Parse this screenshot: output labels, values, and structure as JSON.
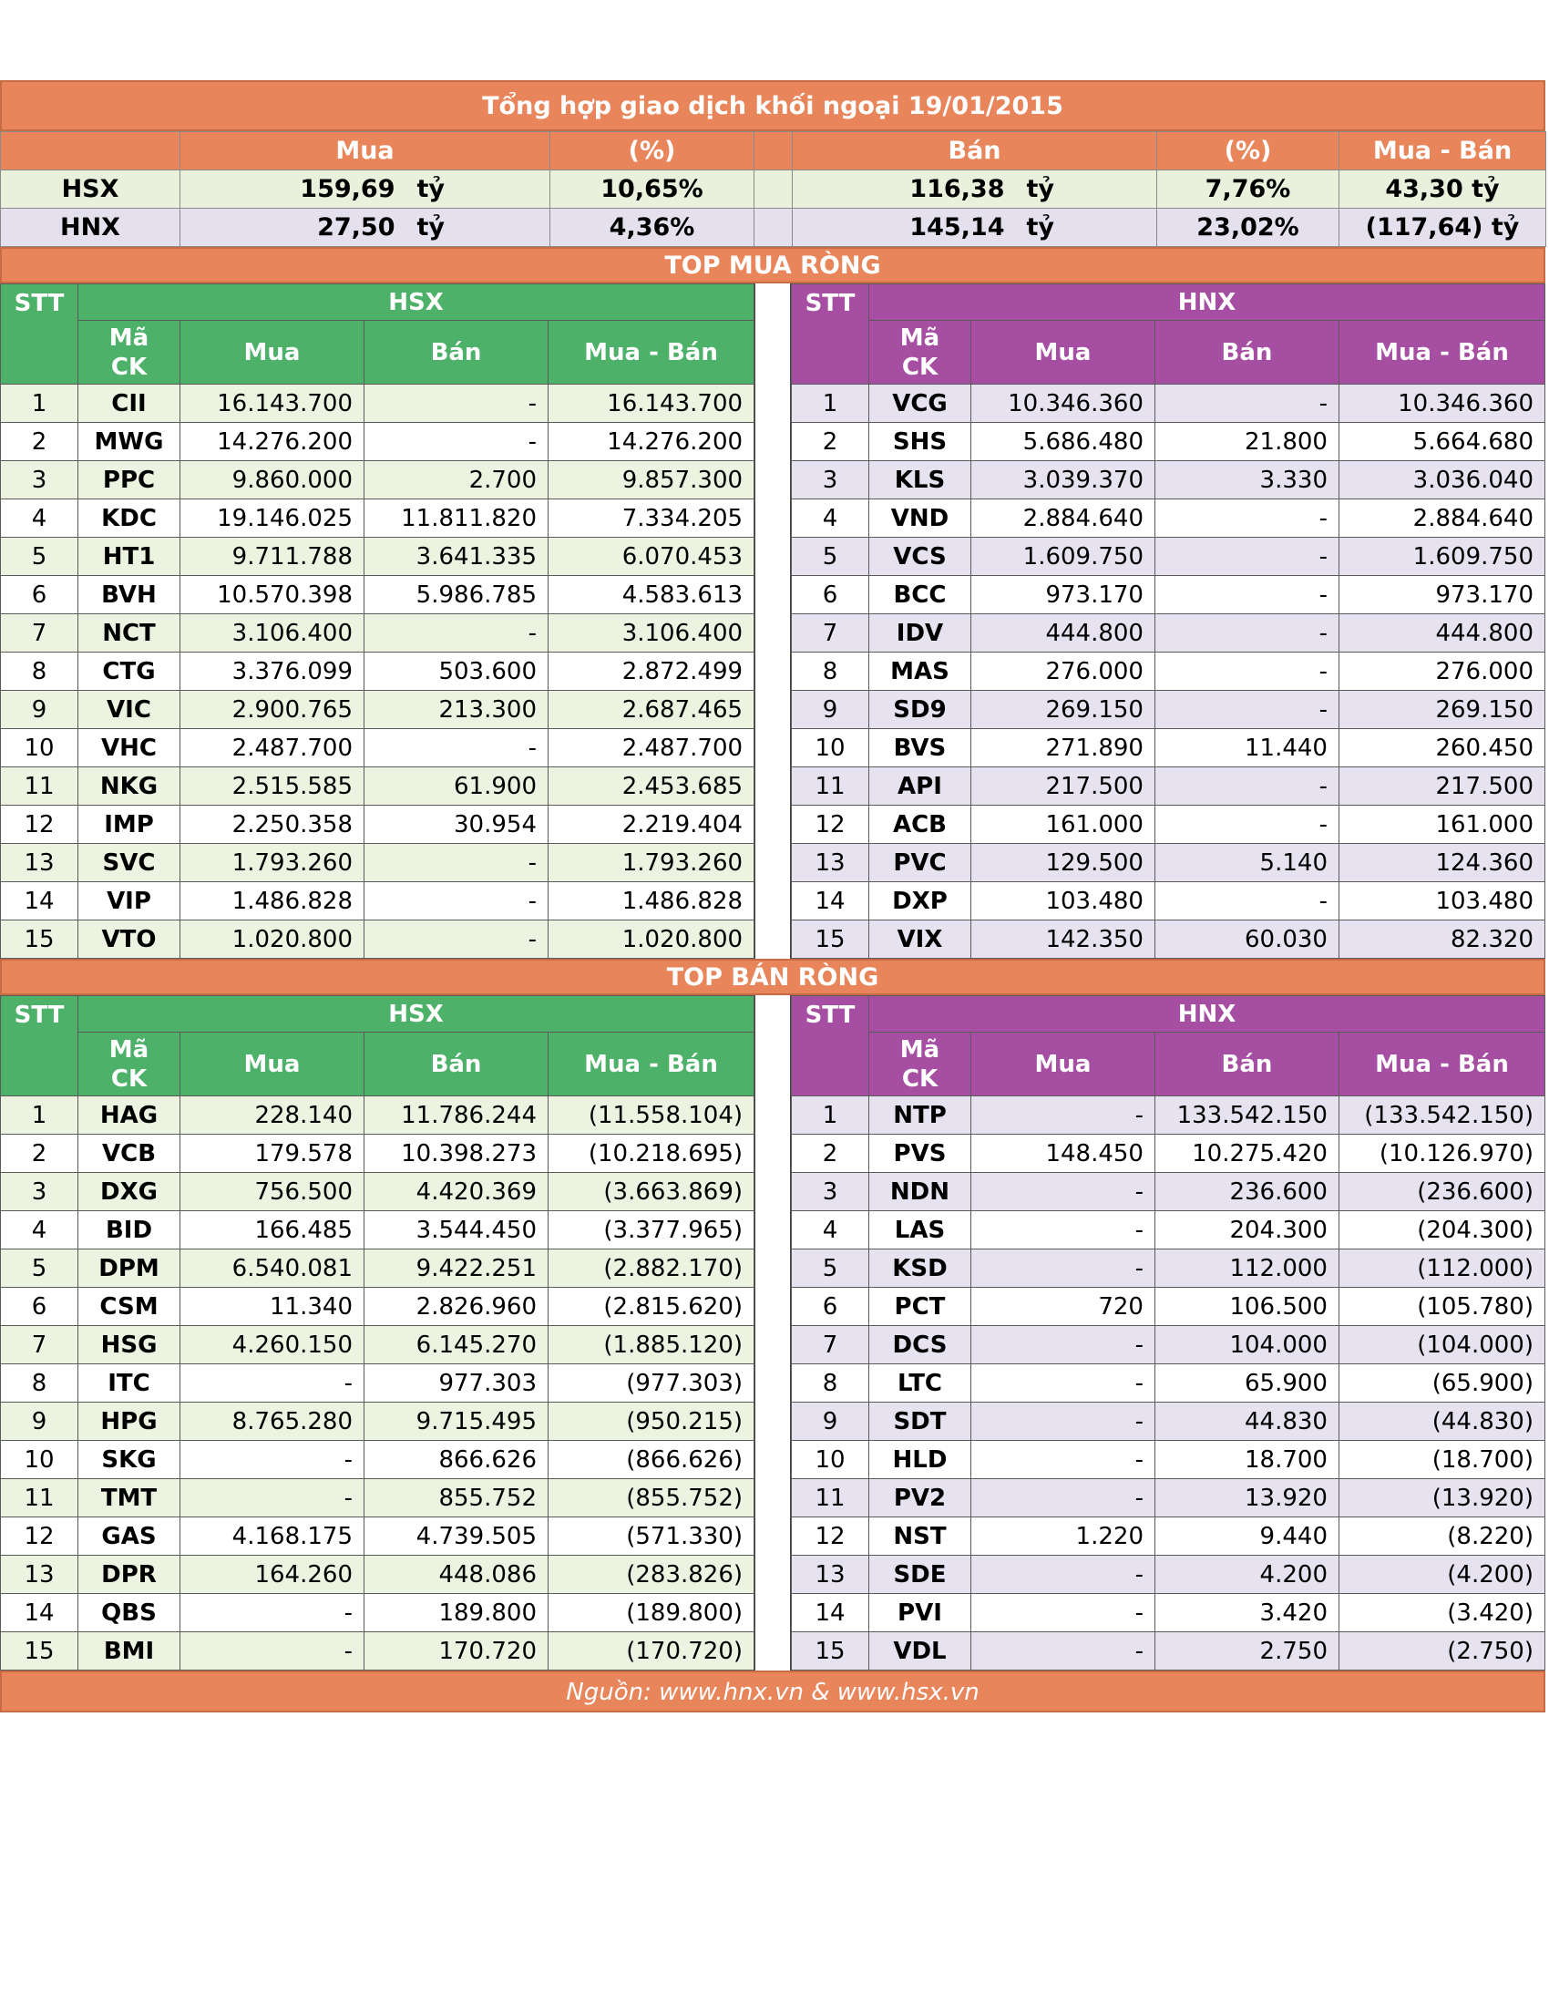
{
  "title": "Tổng hợp giao dịch khối ngoại 19/01/2015",
  "summary": {
    "headers": {
      "buy": "Mua",
      "buy_pct": "(%)",
      "sell": "Bán",
      "sell_pct": "(%)",
      "net": "Mua - Bán"
    },
    "unit": "tỷ",
    "rows": [
      {
        "exchange": "HSX",
        "buy": "159,69",
        "buy_pct": "10,65%",
        "sell": "116,38",
        "sell_pct": "7,76%",
        "net": "43,30 tỷ"
      },
      {
        "exchange": "HNX",
        "buy": "27,50",
        "buy_pct": "4,36%",
        "sell": "145,14",
        "sell_pct": "23,02%",
        "net": "(117,64) tỷ"
      }
    ]
  },
  "headers": {
    "hsx": "HSX",
    "hnx": "HNX",
    "stt": "STT",
    "code_line1": "Mã",
    "code_line2": "CK",
    "buy": "Mua",
    "sell": "Bán",
    "net": "Mua - Bán"
  },
  "top_buy": {
    "title": "TOP MUA RÒNG",
    "hsx": [
      [
        "1",
        "CII",
        "16.143.700",
        "-",
        "16.143.700"
      ],
      [
        "2",
        "MWG",
        "14.276.200",
        "-",
        "14.276.200"
      ],
      [
        "3",
        "PPC",
        "9.860.000",
        "2.700",
        "9.857.300"
      ],
      [
        "4",
        "KDC",
        "19.146.025",
        "11.811.820",
        "7.334.205"
      ],
      [
        "5",
        "HT1",
        "9.711.788",
        "3.641.335",
        "6.070.453"
      ],
      [
        "6",
        "BVH",
        "10.570.398",
        "5.986.785",
        "4.583.613"
      ],
      [
        "7",
        "NCT",
        "3.106.400",
        "-",
        "3.106.400"
      ],
      [
        "8",
        "CTG",
        "3.376.099",
        "503.600",
        "2.872.499"
      ],
      [
        "9",
        "VIC",
        "2.900.765",
        "213.300",
        "2.687.465"
      ],
      [
        "10",
        "VHC",
        "2.487.700",
        "-",
        "2.487.700"
      ],
      [
        "11",
        "NKG",
        "2.515.585",
        "61.900",
        "2.453.685"
      ],
      [
        "12",
        "IMP",
        "2.250.358",
        "30.954",
        "2.219.404"
      ],
      [
        "13",
        "SVC",
        "1.793.260",
        "-",
        "1.793.260"
      ],
      [
        "14",
        "VIP",
        "1.486.828",
        "-",
        "1.486.828"
      ],
      [
        "15",
        "VTO",
        "1.020.800",
        "-",
        "1.020.800"
      ]
    ],
    "hnx": [
      [
        "1",
        "VCG",
        "10.346.360",
        "-",
        "10.346.360"
      ],
      [
        "2",
        "SHS",
        "5.686.480",
        "21.800",
        "5.664.680"
      ],
      [
        "3",
        "KLS",
        "3.039.370",
        "3.330",
        "3.036.040"
      ],
      [
        "4",
        "VND",
        "2.884.640",
        "-",
        "2.884.640"
      ],
      [
        "5",
        "VCS",
        "1.609.750",
        "-",
        "1.609.750"
      ],
      [
        "6",
        "BCC",
        "973.170",
        "-",
        "973.170"
      ],
      [
        "7",
        "IDV",
        "444.800",
        "-",
        "444.800"
      ],
      [
        "8",
        "MAS",
        "276.000",
        "-",
        "276.000"
      ],
      [
        "9",
        "SD9",
        "269.150",
        "-",
        "269.150"
      ],
      [
        "10",
        "BVS",
        "271.890",
        "11.440",
        "260.450"
      ],
      [
        "11",
        "API",
        "217.500",
        "-",
        "217.500"
      ],
      [
        "12",
        "ACB",
        "161.000",
        "-",
        "161.000"
      ],
      [
        "13",
        "PVC",
        "129.500",
        "5.140",
        "124.360"
      ],
      [
        "14",
        "DXP",
        "103.480",
        "-",
        "103.480"
      ],
      [
        "15",
        "VIX",
        "142.350",
        "60.030",
        "82.320"
      ]
    ]
  },
  "top_sell": {
    "title": "TOP BÁN RÒNG",
    "hsx": [
      [
        "1",
        "HAG",
        "228.140",
        "11.786.244",
        "(11.558.104)"
      ],
      [
        "2",
        "VCB",
        "179.578",
        "10.398.273",
        "(10.218.695)"
      ],
      [
        "3",
        "DXG",
        "756.500",
        "4.420.369",
        "(3.663.869)"
      ],
      [
        "4",
        "BID",
        "166.485",
        "3.544.450",
        "(3.377.965)"
      ],
      [
        "5",
        "DPM",
        "6.540.081",
        "9.422.251",
        "(2.882.170)"
      ],
      [
        "6",
        "CSM",
        "11.340",
        "2.826.960",
        "(2.815.620)"
      ],
      [
        "7",
        "HSG",
        "4.260.150",
        "6.145.270",
        "(1.885.120)"
      ],
      [
        "8",
        "ITC",
        "-",
        "977.303",
        "(977.303)"
      ],
      [
        "9",
        "HPG",
        "8.765.280",
        "9.715.495",
        "(950.215)"
      ],
      [
        "10",
        "SKG",
        "-",
        "866.626",
        "(866.626)"
      ],
      [
        "11",
        "TMT",
        "-",
        "855.752",
        "(855.752)"
      ],
      [
        "12",
        "GAS",
        "4.168.175",
        "4.739.505",
        "(571.330)"
      ],
      [
        "13",
        "DPR",
        "164.260",
        "448.086",
        "(283.826)"
      ],
      [
        "14",
        "QBS",
        "-",
        "189.800",
        "(189.800)"
      ],
      [
        "15",
        "BMI",
        "-",
        "170.720",
        "(170.720)"
      ]
    ],
    "hnx": [
      [
        "1",
        "NTP",
        "-",
        "133.542.150",
        "(133.542.150)"
      ],
      [
        "2",
        "PVS",
        "148.450",
        "10.275.420",
        "(10.126.970)"
      ],
      [
        "3",
        "NDN",
        "-",
        "236.600",
        "(236.600)"
      ],
      [
        "4",
        "LAS",
        "-",
        "204.300",
        "(204.300)"
      ],
      [
        "5",
        "KSD",
        "-",
        "112.000",
        "(112.000)"
      ],
      [
        "6",
        "PCT",
        "720",
        "106.500",
        "(105.780)"
      ],
      [
        "7",
        "DCS",
        "-",
        "104.000",
        "(104.000)"
      ],
      [
        "8",
        "LTC",
        "-",
        "65.900",
        "(65.900)"
      ],
      [
        "9",
        "SDT",
        "-",
        "44.830",
        "(44.830)"
      ],
      [
        "10",
        "HLD",
        "-",
        "18.700",
        "(18.700)"
      ],
      [
        "11",
        "PV2",
        "-",
        "13.920",
        "(13.920)"
      ],
      [
        "12",
        "NST",
        "1.220",
        "9.440",
        "(8.220)"
      ],
      [
        "13",
        "SDE",
        "-",
        "4.200",
        "(4.200)"
      ],
      [
        "14",
        "PVI",
        "-",
        "3.420",
        "(3.420)"
      ],
      [
        "15",
        "VDL",
        "-",
        "2.750",
        "(2.750)"
      ]
    ]
  },
  "source": "Nguồn: www.hnx.vn   &   www.hsx.vn",
  "colors": {
    "orange": "#E8855A",
    "green": "#4EB16A",
    "purple": "#A64EA2",
    "green_light": "#ECF4E1",
    "purple_light": "#E6E2F0"
  }
}
